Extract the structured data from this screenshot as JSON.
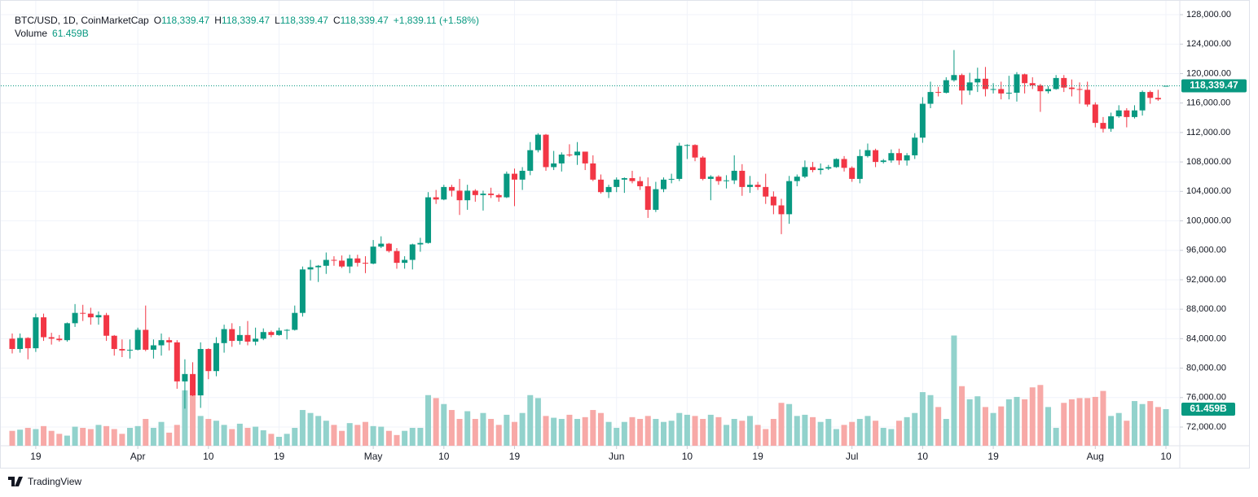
{
  "header": {
    "symbol": "BTC/USD, 1D, CoinMarketCap",
    "ohlc": [
      {
        "key": "O",
        "value": "118,339.47"
      },
      {
        "key": "H",
        "value": "118,339.47"
      },
      {
        "key": "L",
        "value": "118,339.47"
      },
      {
        "key": "C",
        "value": "118,339.47"
      }
    ],
    "change": "+1,839.11 (+1.58%)",
    "volume_name": "Volume",
    "volume_value": "61.459B"
  },
  "footer": {
    "brand": "TradingView"
  },
  "chart_data": {
    "type": "candlestick",
    "up_color": "#089981",
    "down_color": "#f23645",
    "volume_up_color": "#92d2cc",
    "volume_down_color": "#f7a9a7",
    "grid": true,
    "x": [
      "Mar 16",
      "Mar 17",
      "Mar 18",
      "Mar 19",
      "Mar 20",
      "Mar 21",
      "Mar 22",
      "Mar 23",
      "Mar 24",
      "Mar 25",
      "Mar 26",
      "Mar 27",
      "Mar 28",
      "Mar 29",
      "Mar 30",
      "Mar 31",
      "Apr 1",
      "Apr 2",
      "Apr 3",
      "Apr 4",
      "Apr 5",
      "Apr 6",
      "Apr 7",
      "Apr 8",
      "Apr 9",
      "Apr 10",
      "Apr 11",
      "Apr 12",
      "Apr 13",
      "Apr 14",
      "Apr 15",
      "Apr 16",
      "Apr 17",
      "Apr 18",
      "Apr 19",
      "Apr 20",
      "Apr 21",
      "Apr 22",
      "Apr 23",
      "Apr 24",
      "Apr 25",
      "Apr 26",
      "Apr 27",
      "Apr 28",
      "Apr 29",
      "Apr 30",
      "May 1",
      "May 2",
      "May 3",
      "May 4",
      "May 5",
      "May 6",
      "May 7",
      "May 8",
      "May 9",
      "May 10",
      "May 11",
      "May 12",
      "May 13",
      "May 14",
      "May 15",
      "May 16",
      "May 17",
      "May 18",
      "May 19",
      "May 20",
      "May 21",
      "May 22",
      "May 23",
      "May 24",
      "May 25",
      "May 26",
      "May 27",
      "May 28",
      "May 29",
      "May 30",
      "May 31",
      "Jun 1",
      "Jun 2",
      "Jun 3",
      "Jun 4",
      "Jun 5",
      "Jun 6",
      "Jun 7",
      "Jun 8",
      "Jun 9",
      "Jun 10",
      "Jun 11",
      "Jun 12",
      "Jun 13",
      "Jun 14",
      "Jun 15",
      "Jun 16",
      "Jun 17",
      "Jun 18",
      "Jun 19",
      "Jun 20",
      "Jun 21",
      "Jun 22",
      "Jun 23",
      "Jun 24",
      "Jun 25",
      "Jun 26",
      "Jun 27",
      "Jun 28",
      "Jun 29",
      "Jun 30",
      "Jul 1",
      "Jul 2",
      "Jul 3",
      "Jul 4",
      "Jul 5",
      "Jul 6",
      "Jul 7",
      "Jul 8",
      "Jul 9",
      "Jul 10",
      "Jul 11",
      "Jul 12",
      "Jul 13",
      "Jul 14",
      "Jul 15",
      "Jul 16",
      "Jul 17",
      "Jul 18",
      "Jul 19",
      "Jul 20",
      "Jul 21",
      "Jul 22",
      "Jul 23",
      "Jul 24",
      "Jul 25",
      "Jul 26",
      "Jul 27",
      "Jul 28",
      "Jul 29",
      "Jul 30",
      "Jul 31",
      "Aug 1",
      "Aug 2",
      "Aug 3",
      "Aug 4",
      "Aug 5",
      "Aug 6",
      "Aug 7",
      "Aug 8",
      "Aug 9",
      "Aug 10"
    ],
    "open": [
      84000,
      82600,
      84100,
      82700,
      86900,
      84200,
      84000,
      83800,
      86100,
      87500,
      87400,
      86900,
      87200,
      84400,
      82600,
      82400,
      82500,
      85200,
      82500,
      83100,
      83800,
      83500,
      78200,
      79200,
      76300,
      82600,
      79600,
      83400,
      85300,
      83700,
      84500,
      83600,
      84000,
      84900,
      84500,
      85100,
      85200,
      87500,
      93400,
      93700,
      93900,
      94700,
      94600,
      93800,
      94900,
      94300,
      94200,
      96500,
      96900,
      95900,
      94300,
      94700,
      96800,
      97000,
      103200,
      102900,
      104600,
      104100,
      102800,
      104100,
      103500,
      103700,
      103500,
      103200,
      106400,
      105600,
      106800,
      109600,
      111700,
      107300,
      107800,
      109000,
      108900,
      109400,
      107800,
      105600,
      103900,
      104600,
      105600,
      105800,
      105400,
      104700,
      101500,
      104300,
      105600,
      105700,
      110200,
      110300,
      108600,
      105700,
      106000,
      105400,
      105500,
      106800,
      104600,
      104900,
      104600,
      103300,
      102100,
      100900,
      105400,
      106000,
      107300,
      106900,
      107100,
      107300,
      108400,
      107200,
      105700,
      108800,
      109600,
      108000,
      108200,
      109200,
      108200,
      108900,
      111300,
      115900,
      117500,
      117400,
      119100,
      119800,
      117700,
      118800,
      119300,
      117900,
      117900,
      117300,
      117400,
      119900,
      118700,
      118400,
      117600,
      117900,
      119400,
      118100,
      117900,
      117800,
      115800,
      113300,
      112500,
      114200,
      115000,
      114100,
      115000,
      117500,
      116700,
      118339.47
    ],
    "high": [
      84700,
      84700,
      84200,
      87400,
      87400,
      84800,
      84500,
      86200,
      88700,
      88600,
      88200,
      87700,
      87500,
      84500,
      83900,
      83900,
      85500,
      88500,
      83900,
      84700,
      84200,
      83800,
      81200,
      80800,
      83500,
      82700,
      84200,
      85900,
      86100,
      85700,
      86400,
      85500,
      85400,
      85100,
      85500,
      85300,
      88500,
      93800,
      94700,
      94000,
      95700,
      95200,
      95300,
      95400,
      95400,
      95200,
      97400,
      97900,
      97000,
      96300,
      95200,
      96900,
      97700,
      103900,
      104200,
      104900,
      104900,
      105700,
      104900,
      104300,
      104100,
      104500,
      103700,
      106700,
      107100,
      107300,
      110700,
      111900,
      111800,
      109500,
      109300,
      110400,
      110700,
      109300,
      108900,
      106300,
      104900,
      105900,
      105900,
      106800,
      106000,
      105900,
      105300,
      105900,
      106400,
      110600,
      110400,
      110400,
      108800,
      106200,
      106200,
      106200,
      108900,
      107700,
      106100,
      105300,
      106400,
      104000,
      103000,
      106100,
      106300,
      108200,
      108000,
      107800,
      107600,
      108500,
      108800,
      107400,
      109700,
      110500,
      109800,
      108400,
      109700,
      109800,
      109200,
      111900,
      116800,
      118900,
      118200,
      119500,
      123200,
      120000,
      120100,
      120800,
      120900,
      118700,
      118900,
      119700,
      120200,
      120000,
      119500,
      118600,
      118300,
      119800,
      119800,
      119200,
      118800,
      118900,
      116100,
      114100,
      114700,
      115700,
      115300,
      115700,
      117700,
      117700,
      117800,
      118339.47
    ],
    "low": [
      82000,
      82100,
      81200,
      82200,
      83700,
      83200,
      83600,
      83600,
      85600,
      86400,
      85900,
      85900,
      83700,
      81700,
      81500,
      81300,
      82400,
      82300,
      81300,
      81700,
      82400,
      77200,
      74500,
      76200,
      74600,
      78500,
      78900,
      82100,
      82900,
      83200,
      83100,
      83100,
      83800,
      84200,
      84400,
      83900,
      85100,
      87000,
      91900,
      91700,
      92800,
      93900,
      93600,
      92900,
      93800,
      92900,
      94100,
      96300,
      95700,
      93500,
      93500,
      93400,
      95800,
      96900,
      102300,
      102800,
      103300,
      100800,
      101500,
      102600,
      101400,
      103100,
      102600,
      103100,
      102000,
      104200,
      106200,
      109300,
      106800,
      106900,
      106700,
      108700,
      107600,
      106900,
      105400,
      103700,
      103100,
      103900,
      103800,
      105100,
      104200,
      100400,
      101200,
      103900,
      105100,
      105400,
      108400,
      108100,
      105500,
      102800,
      104900,
      104400,
      105000,
      103400,
      103800,
      104200,
      102300,
      100900,
      98200,
      99600,
      104700,
      105800,
      106600,
      106300,
      106900,
      107200,
      106700,
      105300,
      105100,
      108600,
      107300,
      107800,
      107900,
      107600,
      107500,
      108400,
      110600,
      115300,
      116900,
      117300,
      118900,
      115800,
      117100,
      117500,
      116900,
      117300,
      116500,
      116500,
      116200,
      117300,
      117900,
      114800,
      117300,
      117800,
      117500,
      116900,
      115900,
      115500,
      112700,
      112000,
      112100,
      114000,
      112700,
      113900,
      114300,
      115900,
      116300,
      118339.47
    ],
    "close": [
      82600,
      84100,
      82700,
      86900,
      84200,
      84000,
      83800,
      86100,
      87500,
      87400,
      86900,
      87200,
      84400,
      82600,
      82400,
      82500,
      85200,
      82500,
      83100,
      83800,
      83500,
      78200,
      79200,
      76300,
      82600,
      79600,
      83400,
      85300,
      83700,
      84500,
      83600,
      84000,
      84900,
      84500,
      85100,
      85200,
      87500,
      93400,
      93700,
      93900,
      94700,
      94600,
      93800,
      94900,
      94300,
      94200,
      96500,
      96900,
      95900,
      94300,
      94700,
      96800,
      97000,
      103200,
      102900,
      104600,
      104100,
      102800,
      104100,
      103500,
      103700,
      103500,
      103200,
      106400,
      105600,
      106800,
      109600,
      111700,
      107300,
      107800,
      109000,
      108900,
      109400,
      107800,
      105600,
      103900,
      104600,
      105600,
      105800,
      105400,
      104700,
      101500,
      104300,
      105600,
      105700,
      110200,
      110300,
      108600,
      105700,
      106000,
      105400,
      105500,
      106800,
      104600,
      104900,
      104600,
      103300,
      102100,
      100900,
      105400,
      106000,
      107300,
      106900,
      107100,
      107300,
      108400,
      107200,
      105700,
      108800,
      109600,
      108000,
      108200,
      109200,
      108200,
      108900,
      111300,
      115900,
      117500,
      117400,
      119100,
      119800,
      117700,
      118800,
      119300,
      117900,
      117900,
      117300,
      117400,
      119900,
      118700,
      118400,
      117600,
      117900,
      119400,
      118100,
      117900,
      117800,
      115800,
      113300,
      112500,
      114200,
      115000,
      114100,
      115000,
      117500,
      116700,
      116500.36,
      118339.47
    ],
    "volume": [
      25,
      27,
      30,
      28,
      33,
      25,
      20,
      17,
      32,
      30,
      28,
      35,
      33,
      28,
      20,
      30,
      33,
      45,
      30,
      40,
      22,
      35,
      93,
      90,
      50,
      45,
      42,
      35,
      28,
      37,
      30,
      32,
      26,
      20,
      15,
      20,
      30,
      60,
      55,
      50,
      42,
      35,
      25,
      38,
      35,
      40,
      33,
      32,
      25,
      18,
      25,
      30,
      30,
      85,
      80,
      70,
      60,
      45,
      58,
      45,
      55,
      45,
      35,
      52,
      40,
      55,
      85,
      80,
      50,
      47,
      45,
      52,
      45,
      48,
      60,
      55,
      40,
      30,
      40,
      48,
      45,
      50,
      45,
      40,
      42,
      55,
      52,
      50,
      45,
      52,
      48,
      35,
      45,
      42,
      50,
      35,
      28,
      45,
      72,
      70,
      50,
      52,
      48,
      40,
      45,
      28,
      35,
      40,
      45,
      50,
      42,
      30,
      28,
      42,
      48,
      55,
      90,
      85,
      65,
      45,
      185,
      100,
      78,
      83,
      65,
      55,
      66,
      78,
      82,
      78,
      98,
      102,
      65,
      30,
      72,
      78,
      80,
      80,
      82,
      92,
      50,
      55,
      42,
      75,
      70,
      75,
      65,
      61.459
    ],
    "volume_ylim": [
      0,
      400
    ],
    "last_price_label": "118,339.47",
    "last_volume_label": "61.459B",
    "ylim": [
      69460,
      129440
    ],
    "yticks": [
      {
        "value": 72000,
        "label": "72,000.00"
      },
      {
        "value": 76000,
        "label": "76,000.00"
      },
      {
        "value": 80000,
        "label": "80,000.00"
      },
      {
        "value": 84000,
        "label": "84,000.00"
      },
      {
        "value": 88000,
        "label": "88,000.00"
      },
      {
        "value": 92000,
        "label": "92,000.00"
      },
      {
        "value": 96000,
        "label": "96,000.00"
      },
      {
        "value": 100000,
        "label": "100,000.00"
      },
      {
        "value": 104000,
        "label": "104,000.00"
      },
      {
        "value": 108000,
        "label": "108,000.00"
      },
      {
        "value": 112000,
        "label": "112,000.00"
      },
      {
        "value": 116000,
        "label": "116,000.00"
      },
      {
        "value": 120000,
        "label": "120,000.00"
      },
      {
        "value": 124000,
        "label": "124,000.00"
      },
      {
        "value": 128000,
        "label": "128,000.00"
      }
    ],
    "xticks": [
      {
        "value": "Mar 19",
        "label": "19"
      },
      {
        "value": "Apr 1",
        "label": "Apr"
      },
      {
        "value": "Apr 10",
        "label": "10"
      },
      {
        "value": "Apr 19",
        "label": "19"
      },
      {
        "value": "May 1",
        "label": "May"
      },
      {
        "value": "May 10",
        "label": "10"
      },
      {
        "value": "May 19",
        "label": "19"
      },
      {
        "value": "Jun 1",
        "label": "Jun"
      },
      {
        "value": "Jun 10",
        "label": "10"
      },
      {
        "value": "Jun 19",
        "label": "19"
      },
      {
        "value": "Jul 1",
        "label": "Jul"
      },
      {
        "value": "Jul 10",
        "label": "10"
      },
      {
        "value": "Jul 19",
        "label": "19"
      },
      {
        "value": "Aug 1",
        "label": "Aug"
      },
      {
        "value": "Aug 10",
        "label": "10"
      }
    ]
  }
}
